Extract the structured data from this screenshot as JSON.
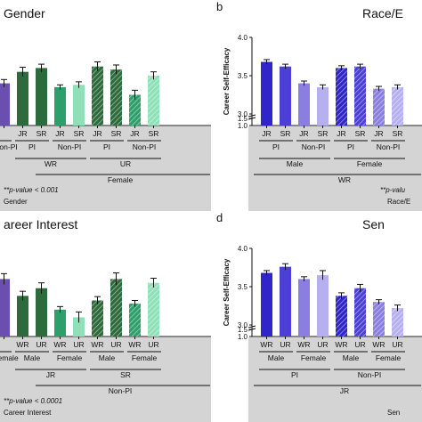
{
  "panels": [
    {
      "id": "a",
      "letter": "",
      "title": "Gender",
      "ylabel": "",
      "footnote": "**p-value < 0.001",
      "caption": "Gender",
      "chart_data": {
        "type": "bar",
        "categories": [
          "",
          "JR",
          "SR",
          "JR",
          "SR",
          "JR",
          "SR",
          "JR",
          "SR"
        ],
        "values": [
          3.4,
          3.55,
          3.6,
          3.35,
          3.38,
          3.62,
          3.58,
          3.25,
          3.5
        ],
        "errors": [
          0.05,
          0.06,
          0.05,
          0.03,
          0.04,
          0.06,
          0.06,
          0.06,
          0.05
        ],
        "colors": [
          "#6a4fb0",
          "#2e6b3c",
          "#2e6b3c",
          "#2e9e6a",
          "#8fe0b8",
          "#2e6b3c",
          "#2e6b3c",
          "#2e9e6a",
          "#8fe0b8"
        ],
        "hatched": [
          false,
          false,
          false,
          false,
          false,
          true,
          true,
          true,
          true
        ],
        "groups_row1": [
          "Non-PI",
          "PI",
          "Non-PI",
          "PI",
          "Non-PI"
        ],
        "groups_row2": [
          "WR",
          "UR"
        ],
        "groups_row3": [
          "Female"
        ],
        "ylim": [
          1.0,
          4.0
        ]
      }
    },
    {
      "id": "b",
      "letter": "b",
      "title": "Race/E",
      "ylabel": "Career Self-Efficacy",
      "footnote": "**p-valu",
      "caption": "Race/E",
      "chart_data": {
        "type": "bar",
        "categories": [
          "JR",
          "SR",
          "JR",
          "SR",
          "JR",
          "SR",
          "JR",
          "SR"
        ],
        "values": [
          3.68,
          3.62,
          3.4,
          3.35,
          3.6,
          3.62,
          3.33,
          3.35
        ],
        "errors": [
          0.03,
          0.03,
          0.03,
          0.03,
          0.03,
          0.03,
          0.03,
          0.03
        ],
        "colors": [
          "#2f25c8",
          "#4b3fd6",
          "#8a7fe0",
          "#b7b0ee",
          "#2f25c8",
          "#4b3fd6",
          "#8a7fe0",
          "#b7b0ee"
        ],
        "hatched": [
          false,
          false,
          false,
          false,
          true,
          true,
          true,
          true
        ],
        "groups_row1": [
          "PI",
          "Non-PI",
          "PI",
          "Non-PI"
        ],
        "groups_row2": [
          "Male",
          "Female"
        ],
        "groups_row3": [
          "WR"
        ],
        "yticks": [
          "4.0",
          "3.5",
          "3.0",
          "1.5",
          "1.0"
        ],
        "ylim": [
          1.0,
          4.0
        ]
      }
    },
    {
      "id": "c",
      "letter": "",
      "title": "areer Interest",
      "ylabel": "",
      "footnote": "**p-value < 0.0001",
      "caption": "Career Interest",
      "chart_data": {
        "type": "bar",
        "categories": [
          "",
          "WR",
          "UR",
          "WR",
          "UR",
          "WR",
          "UR",
          "WR",
          "UR"
        ],
        "values": [
          3.6,
          3.38,
          3.48,
          3.2,
          3.1,
          3.32,
          3.6,
          3.28,
          3.55
        ],
        "errors": [
          0.07,
          0.06,
          0.07,
          0.04,
          0.07,
          0.05,
          0.08,
          0.04,
          0.06
        ],
        "colors": [
          "#6a4fb0",
          "#2e6b3c",
          "#2e6b3c",
          "#2e9e6a",
          "#8fe0b8",
          "#2e6b3c",
          "#2e6b3c",
          "#2e9e6a",
          "#8fe0b8"
        ],
        "hatched": [
          false,
          false,
          false,
          false,
          false,
          true,
          true,
          true,
          true
        ],
        "groups_row1": [
          "Female",
          "Male",
          "Female",
          "Male",
          "Female"
        ],
        "groups_row2": [
          "JR",
          "SR"
        ],
        "groups_row3": [
          "Non-PI"
        ],
        "ylim": [
          1.0,
          4.0
        ]
      }
    },
    {
      "id": "d",
      "letter": "d",
      "title": "Sen",
      "ylabel": "Career Self-Efficacy",
      "footnote": "",
      "caption": "Sen",
      "chart_data": {
        "type": "bar",
        "categories": [
          "WR",
          "UR",
          "WR",
          "UR",
          "WR",
          "UR",
          "WR",
          "UR"
        ],
        "values": [
          3.68,
          3.76,
          3.6,
          3.65,
          3.38,
          3.48,
          3.3,
          3.22
        ],
        "errors": [
          0.03,
          0.04,
          0.03,
          0.06,
          0.04,
          0.05,
          0.03,
          0.04
        ],
        "colors": [
          "#2f25c8",
          "#4b3fd6",
          "#8a7fe0",
          "#b7b0ee",
          "#2f25c8",
          "#4b3fd6",
          "#8a7fe0",
          "#b7b0ee"
        ],
        "hatched": [
          false,
          false,
          false,
          false,
          true,
          true,
          true,
          true
        ],
        "groups_row1": [
          "Male",
          "Female",
          "Male",
          "Female"
        ],
        "groups_row2": [
          "PI",
          "Non-PI"
        ],
        "groups_row3": [
          "JR"
        ],
        "yticks": [
          "4.0",
          "3.5",
          "3.0",
          "1.5",
          "1.0"
        ],
        "ylim": [
          1.0,
          4.0
        ]
      }
    }
  ]
}
